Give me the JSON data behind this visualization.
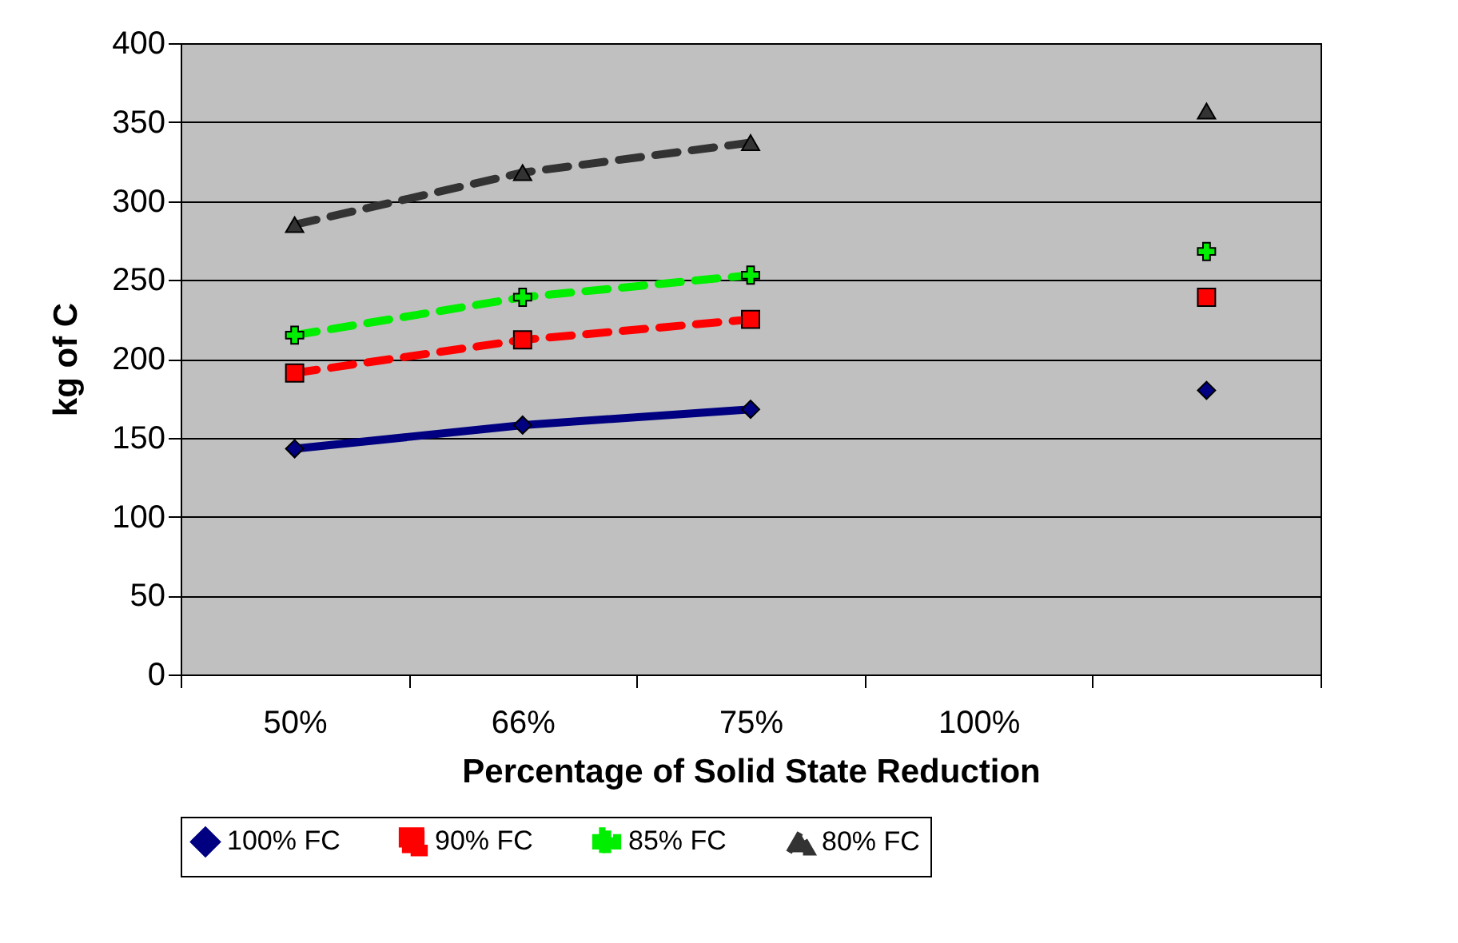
{
  "chart_data": {
    "type": "line",
    "categories": [
      "50%",
      "66%",
      "75%",
      "100%",
      null
    ],
    "xlabel": "Percentage of Solid State Reduction",
    "ylabel": "kg of C",
    "ylim": [
      0,
      400
    ],
    "yticks": [
      0,
      50,
      100,
      150,
      200,
      250,
      300,
      350,
      400
    ],
    "grid": "y",
    "legend": "bottom",
    "series": [
      {
        "name": "100% FC",
        "color": "#000080",
        "marker": "diamond",
        "line_style": "solid",
        "values": [
          143,
          158,
          168,
          null,
          180
        ]
      },
      {
        "name": "90% FC",
        "color": "#ff0000",
        "marker": "square",
        "line_style": "dashed",
        "values": [
          191,
          212,
          225,
          null,
          239
        ]
      },
      {
        "name": "85% FC",
        "color": "#00ee00",
        "marker": "cross",
        "line_style": "dashed",
        "values": [
          215,
          239,
          253,
          null,
          268
        ]
      },
      {
        "name": "80% FC",
        "color": "#333333",
        "marker": "triangle",
        "line_style": "dashed",
        "values": [
          285,
          318,
          337,
          null,
          357
        ]
      }
    ]
  }
}
